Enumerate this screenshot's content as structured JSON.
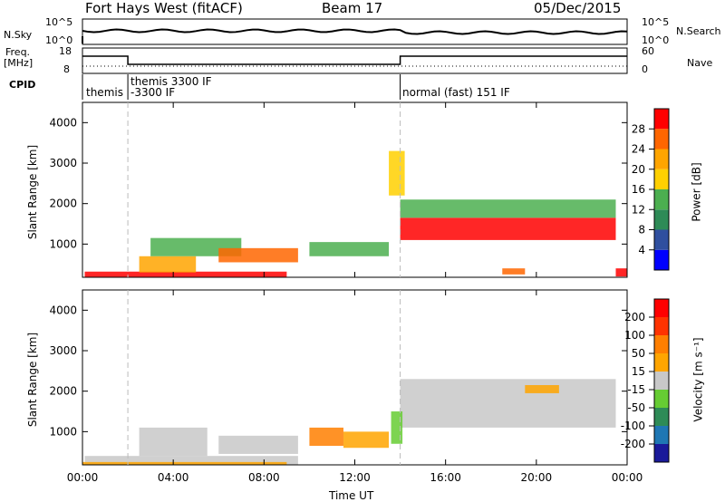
{
  "header": {
    "station": "Fort Hays West (fitACF)",
    "beam": "Beam 17",
    "date": "05/Dec/2015"
  },
  "summary": {
    "left_top_label": "N.Sky",
    "left_top_ticks": [
      "10^5",
      "10^0"
    ],
    "right_top_label": "N.Search",
    "right_top_ticks": [
      "10^5",
      "10^0"
    ],
    "freq_label_line1": "Freq.",
    "freq_label_line2": "[MHz]",
    "freq_ticks": [
      "18",
      "8"
    ],
    "nave_label": "Nave",
    "nave_ticks": [
      "60",
      "0"
    ],
    "cpid_label": "CPID",
    "cpid_segments": [
      {
        "name": "themis",
        "start_h": 0,
        "end_h": 2
      },
      {
        "name": "themis 3300 IF",
        "sub": "-3300 IF",
        "start_h": 2,
        "end_h": 14
      },
      {
        "name": "normal (fast) 151 IF",
        "start_h": 14,
        "end_h": 24
      }
    ]
  },
  "axes": {
    "xlabel": "Time UT",
    "xticks": [
      "00:00",
      "04:00",
      "08:00",
      "12:00",
      "16:00",
      "20:00",
      "00:00"
    ],
    "ylabel": "Slant Range [km]",
    "yticks": [
      "1000",
      "2000",
      "3000",
      "4000"
    ]
  },
  "colorbars": {
    "power": {
      "label": "Power [dB]",
      "ticks": [
        "4",
        "8",
        "12",
        "16",
        "20",
        "24",
        "28"
      ],
      "colors": [
        "#0000ff",
        "#2f4f9f",
        "#2e8b57",
        "#4caf50",
        "#ffd000",
        "#ffa500",
        "#ff6600",
        "#ff0000"
      ]
    },
    "velocity": {
      "label": "Velocity [m s⁻¹]",
      "ticks": [
        "200",
        "100",
        "50",
        "15",
        "-15",
        "-50",
        "-100",
        "-200"
      ],
      "colors": [
        "#1a1a9a",
        "#1f77b4",
        "#2e8b57",
        "#66cc33",
        "#c8c8c8",
        "#ffa500",
        "#ff7f00",
        "#ff3300",
        "#ff0000"
      ]
    }
  },
  "chart_data": {
    "type": "heatmap",
    "x_range_hours": [
      0,
      24
    ],
    "y_range_km": [
      180,
      4500
    ],
    "panels": [
      {
        "name": "power",
        "colorbar": "power",
        "regions": [
          {
            "t0": 0.1,
            "t1": 9.0,
            "r0": 180,
            "r1": 320,
            "level": 7
          },
          {
            "t0": 2.5,
            "t1": 5.0,
            "r0": 300,
            "r1": 700,
            "level": 5
          },
          {
            "t0": 3.0,
            "t1": 7.0,
            "r0": 700,
            "r1": 1150,
            "level": 3
          },
          {
            "t0": 6.0,
            "t1": 9.5,
            "r0": 550,
            "r1": 900,
            "level": 6
          },
          {
            "t0": 10.0,
            "t1": 13.5,
            "r0": 700,
            "r1": 1050,
            "level": 3
          },
          {
            "t0": 14.0,
            "t1": 23.5,
            "r0": 1100,
            "r1": 1650,
            "level": 7
          },
          {
            "t0": 14.0,
            "t1": 23.5,
            "r0": 1650,
            "r1": 2100,
            "level": 3
          },
          {
            "t0": 13.5,
            "t1": 14.2,
            "r0": 2200,
            "r1": 3300,
            "level": 4
          },
          {
            "t0": 18.5,
            "t1": 19.5,
            "r0": 250,
            "r1": 400,
            "level": 6
          },
          {
            "t0": 23.5,
            "t1": 24.0,
            "r0": 200,
            "r1": 400,
            "level": 7
          }
        ]
      },
      {
        "name": "velocity",
        "colorbar": "velocity",
        "regions": [
          {
            "t0": 0.1,
            "t1": 9.5,
            "r0": 180,
            "r1": 400,
            "level": 4
          },
          {
            "t0": 2.5,
            "t1": 5.5,
            "r0": 400,
            "r1": 1100,
            "level": 4
          },
          {
            "t0": 6.0,
            "t1": 9.5,
            "r0": 450,
            "r1": 900,
            "level": 4
          },
          {
            "t0": 10.0,
            "t1": 11.5,
            "r0": 650,
            "r1": 1100,
            "level": 6
          },
          {
            "t0": 11.5,
            "t1": 13.5,
            "r0": 600,
            "r1": 1000,
            "level": 5
          },
          {
            "t0": 14.0,
            "t1": 23.5,
            "r0": 1100,
            "r1": 2300,
            "level": 4
          },
          {
            "t0": 13.6,
            "t1": 14.1,
            "r0": 700,
            "r1": 1500,
            "level": 3
          },
          {
            "t0": 19.5,
            "t1": 21.0,
            "r0": 1950,
            "r1": 2150,
            "level": 5
          },
          {
            "t0": 0.0,
            "t1": 9.0,
            "r0": 180,
            "r1": 250,
            "level": 5
          }
        ]
      }
    ]
  }
}
